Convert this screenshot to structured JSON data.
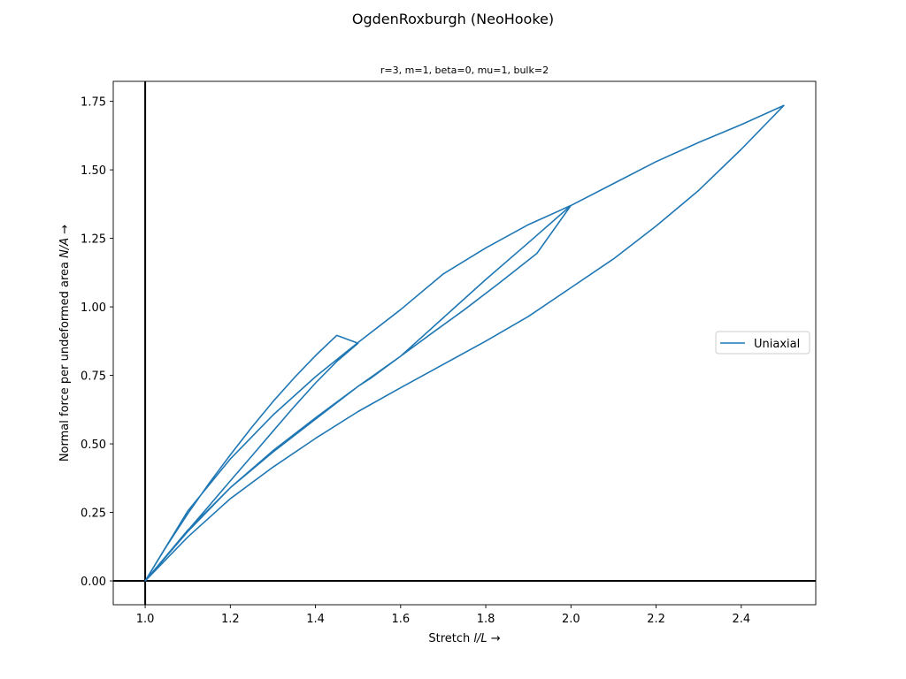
{
  "figure": {
    "title": "OgdenRoxburgh (NeoHooke)"
  },
  "chart_data": {
    "type": "line",
    "title": "r=3, m=1, beta=0, mu=1, bulk=2",
    "xlabel_text": "Stretch ",
    "xlabel_math": "l/L",
    "xlabel_arrow": " →",
    "ylabel_text": "Normal force per undeformed area ",
    "ylabel_math": "N/A",
    "ylabel_arrow": " →",
    "xlim": [
      0.925,
      2.575
    ],
    "ylim": [
      -0.087,
      1.823
    ],
    "xticks": [
      1.0,
      1.2,
      1.4,
      1.6,
      1.8,
      2.0,
      2.2,
      2.4
    ],
    "xtick_labels": [
      "1.0",
      "1.2",
      "1.4",
      "1.6",
      "1.8",
      "2.0",
      "2.2",
      "2.4"
    ],
    "yticks": [
      0.0,
      0.25,
      0.5,
      0.75,
      1.0,
      1.25,
      1.5,
      1.75
    ],
    "ytick_labels": [
      "0.00",
      "0.25",
      "0.50",
      "0.75",
      "1.00",
      "1.25",
      "1.50",
      "1.75"
    ],
    "reference_lines": {
      "x": 1.0,
      "y": 0.0,
      "color": "#000000"
    },
    "grid": false,
    "legend_position": "center-right",
    "series": [
      {
        "name": "Uniaxial",
        "color": "#1f77b4",
        "x": [
          1.0,
          1.05,
          1.1,
          1.15,
          1.2,
          1.25,
          1.3,
          1.35,
          1.4,
          1.45,
          1.5,
          1.45,
          1.4,
          1.35,
          1.3,
          1.25,
          1.2,
          1.15,
          1.1,
          1.05,
          1.0,
          1.1,
          1.2,
          1.3,
          1.4,
          1.5,
          1.53,
          1.6,
          1.67,
          1.75,
          1.83,
          1.92,
          2.0,
          1.9,
          1.8,
          1.7,
          1.6,
          1.5,
          1.4,
          1.3,
          1.2,
          1.1,
          1.0,
          1.1,
          1.2,
          1.3,
          1.4,
          1.5,
          1.6,
          1.7,
          1.8,
          1.9,
          2.0,
          2.1,
          2.2,
          2.3,
          2.4,
          2.5,
          2.4,
          2.3,
          2.2,
          2.1,
          2.0,
          1.9,
          1.8,
          1.7,
          1.6,
          1.5,
          1.4,
          1.3,
          1.2,
          1.1,
          1.0
        ],
        "y": [
          0.0,
          0.126,
          0.245,
          0.356,
          0.46,
          0.56,
          0.654,
          0.741,
          0.822,
          0.896,
          0.867,
          0.801,
          0.722,
          0.636,
          0.546,
          0.455,
          0.365,
          0.274,
          0.184,
          0.092,
          0.0,
          0.185,
          0.34,
          0.475,
          0.595,
          0.71,
          0.74,
          0.82,
          0.9,
          0.99,
          1.085,
          1.195,
          1.37,
          1.234,
          1.1,
          0.96,
          0.82,
          0.71,
          0.59,
          0.47,
          0.34,
          0.18,
          0.0,
          0.16,
          0.3,
          0.415,
          0.52,
          0.618,
          0.705,
          0.79,
          0.875,
          0.965,
          1.07,
          1.175,
          1.295,
          1.425,
          1.575,
          1.735,
          1.665,
          1.6,
          1.53,
          1.45,
          1.37,
          1.3,
          1.215,
          1.12,
          0.99,
          0.87,
          0.745,
          0.605,
          0.445,
          0.255,
          0.0
        ]
      }
    ]
  }
}
